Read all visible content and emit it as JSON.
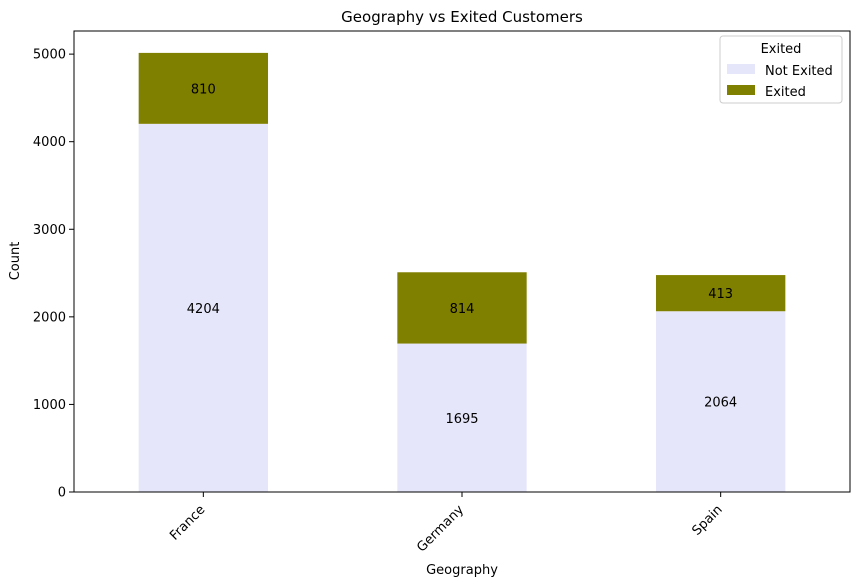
{
  "chart_data": {
    "type": "bar",
    "stacked": true,
    "title": "Geography vs Exited Customers",
    "xlabel": "Geography",
    "ylabel": "Count",
    "categories": [
      "France",
      "Germany",
      "Spain"
    ],
    "series": [
      {
        "name": "Not Exited",
        "values": [
          4204,
          1695,
          2064
        ],
        "color": "#e6e6fa"
      },
      {
        "name": "Exited",
        "values": [
          810,
          814,
          413
        ],
        "color": "#808000"
      }
    ],
    "ylim": [
      0,
      5264
    ],
    "yticks": [
      0,
      1000,
      2000,
      3000,
      4000,
      5000
    ],
    "ytick_labels": [
      "0",
      "1000",
      "2000",
      "3000",
      "4000",
      "5000"
    ],
    "grid": false,
    "legend": {
      "title": "Exited",
      "placement": "top-right"
    }
  }
}
